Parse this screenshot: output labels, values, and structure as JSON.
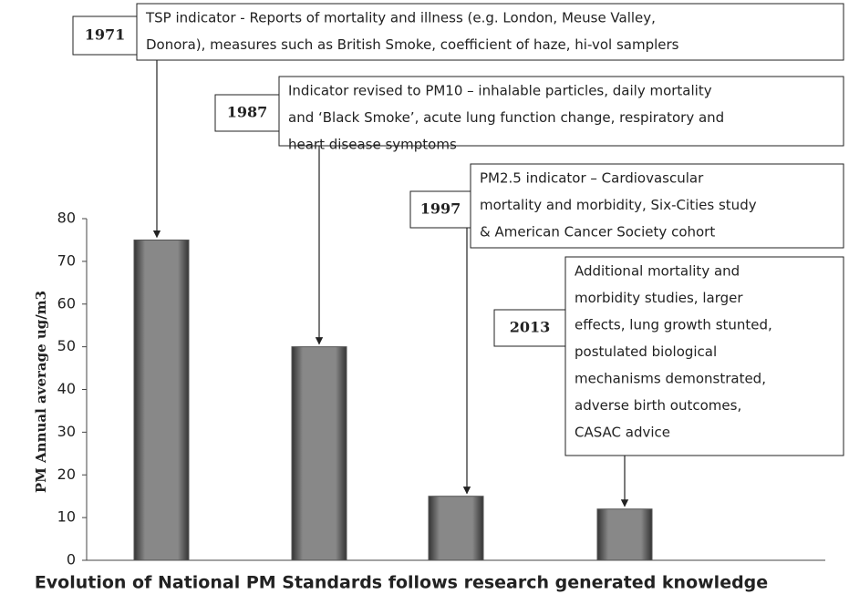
{
  "chart_data": {
    "type": "bar",
    "x_axis_label": "Evolution of National PM Standards  follows research generated knowledge",
    "y_axis_label": "PM Annual average ug/m3",
    "categories": [
      null,
      null,
      null,
      null
    ],
    "values": [
      75,
      50,
      15,
      12
    ],
    "color": "#555555",
    "ylim": [
      0,
      80
    ],
    "yticks": [
      0,
      10,
      20,
      30,
      40,
      50,
      60,
      70,
      80
    ],
    "grid": false,
    "annotations": [
      {
        "year": "1971",
        "lines": [
          "TSP indicator - Reports of mortality and illness (e.g. London,  Meuse Valley,",
          "Donora), measures such as British Smoke, coefficient of haze, hi-vol samplers"
        ]
      },
      {
        "year": "1987",
        "lines": [
          "Indicator revised to PM10 – inhalable particles, daily mortality",
          "and ‘Black Smoke’, acute lung function change, respiratory and",
          "heart disease symptoms"
        ]
      },
      {
        "year": "1997",
        "lines": [
          "PM2.5 indicator – Cardiovascular",
          "mortality and morbidity, Six-Cities study",
          "& American Cancer  Society cohort"
        ]
      },
      {
        "year": "2013",
        "lines": [
          "Additional mortality and",
          "morbidity studies, larger",
          "effects, lung growth stunted,",
          "postulated biological",
          "mechanisms demonstrated,",
          "adverse birth outcomes,",
          "CASAC advice"
        ]
      }
    ]
  }
}
